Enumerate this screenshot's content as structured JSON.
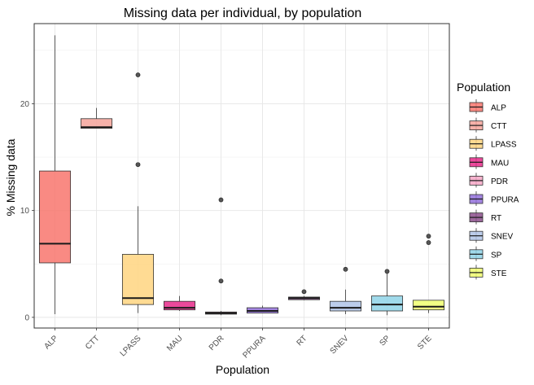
{
  "chart_data": {
    "type": "boxplot",
    "title": "Missing data per individual, by population",
    "xlabel": "Population",
    "ylabel": "% Missing data",
    "ylim": [
      -1.0,
      27.5
    ],
    "yticks": [
      0,
      10,
      20
    ],
    "grid": true,
    "legend": {
      "title": "Population",
      "placement": "right"
    },
    "categories": [
      "ALP",
      "CTT",
      "LPASS",
      "MAU",
      "PDR",
      "PPURA",
      "RT",
      "SNEV",
      "SP",
      "STE"
    ],
    "series": [
      {
        "name": "ALP",
        "color": "#F8766D",
        "whisker_low": 0.3,
        "q1": 5.1,
        "median": 6.9,
        "q3": 13.7,
        "whisker_high": 26.4,
        "outliers": []
      },
      {
        "name": "CTT",
        "color": "#F4A39A",
        "whisker_low": 17.7,
        "q1": 17.7,
        "median": 17.8,
        "q3": 18.6,
        "whisker_high": 19.6,
        "outliers": []
      },
      {
        "name": "LPASS",
        "color": "#FFD580",
        "whisker_low": 0.4,
        "q1": 1.2,
        "median": 1.8,
        "q3": 5.9,
        "whisker_high": 10.4,
        "outliers": [
          14.3,
          22.7
        ]
      },
      {
        "name": "MAU",
        "color": "#E7298A",
        "whisker_low": 0.6,
        "q1": 0.7,
        "median": 0.9,
        "q3": 1.5,
        "whisker_high": 2.0,
        "outliers": []
      },
      {
        "name": "PDR",
        "color": "#F4A6C6",
        "whisker_low": 0.2,
        "q1": 0.3,
        "median": 0.4,
        "q3": 0.5,
        "whisker_high": 0.6,
        "outliers": [
          3.4,
          11.0
        ]
      },
      {
        "name": "PPURA",
        "color": "#9370DB",
        "whisker_low": 0.4,
        "q1": 0.4,
        "median": 0.6,
        "q3": 0.9,
        "whisker_high": 1.1,
        "outliers": []
      },
      {
        "name": "RT",
        "color": "#8B4F8B",
        "whisker_low": 1.6,
        "q1": 1.65,
        "median": 1.8,
        "q3": 1.9,
        "whisker_high": 2.0,
        "outliers": [
          2.4
        ]
      },
      {
        "name": "SNEV",
        "color": "#B0C4E8",
        "whisker_low": 0.3,
        "q1": 0.6,
        "median": 0.9,
        "q3": 1.5,
        "whisker_high": 2.6,
        "outliers": [
          4.5
        ]
      },
      {
        "name": "SP",
        "color": "#8FD3E8",
        "whisker_low": 0.2,
        "q1": 0.6,
        "median": 1.2,
        "q3": 2.0,
        "whisker_high": 4.3,
        "outliers": [
          4.3
        ]
      },
      {
        "name": "STE",
        "color": "#F0FF70",
        "whisker_low": 0.4,
        "q1": 0.7,
        "median": 1.0,
        "q3": 1.6,
        "whisker_high": 1.6,
        "outliers": [
          7.0,
          7.6
        ]
      }
    ]
  }
}
